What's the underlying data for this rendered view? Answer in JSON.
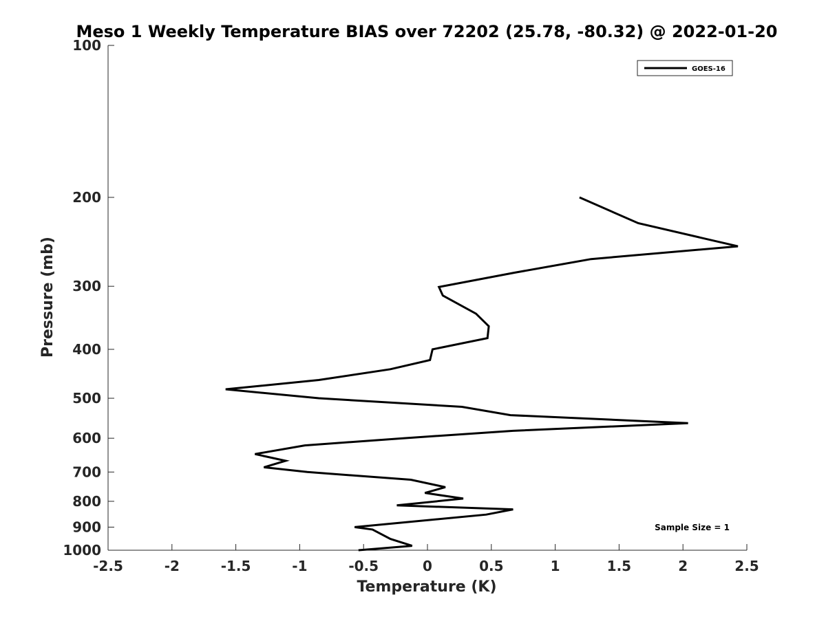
{
  "chart_data": {
    "type": "line",
    "title": "Meso 1 Weekly Temperature BIAS over 72202 (25.78, -80.32) @ 2022-01-20",
    "xlabel": "Temperature (K)",
    "ylabel": "Pressure (mb)",
    "xlim": [
      -2.5,
      2.5
    ],
    "ylim": [
      100,
      1000
    ],
    "y_scale": "log",
    "y_reversed": true,
    "grid": false,
    "legend_position": "top-right",
    "xticks": [
      -2.5,
      -2,
      -1.5,
      -1,
      -0.5,
      0,
      0.5,
      1,
      1.5,
      2,
      2.5
    ],
    "xtick_labels": [
      "-2.5",
      "-2",
      "-1.5",
      "-1",
      "-0.5",
      "0",
      "0.5",
      "1",
      "1.5",
      "2",
      "2.5"
    ],
    "yticks": [
      100,
      200,
      300,
      400,
      500,
      600,
      700,
      800,
      900,
      1000
    ],
    "ytick_labels": [
      "100",
      "200",
      "300",
      "400",
      "500",
      "600",
      "700",
      "800",
      "900",
      "1000"
    ],
    "series": [
      {
        "name": "GOES-16",
        "color": "#000000",
        "x": [
          1.19,
          1.65,
          2.43,
          1.28,
          0.68,
          0.09,
          0.12,
          0.38,
          0.48,
          0.47,
          0.04,
          0.02,
          -0.29,
          -0.85,
          -1.58,
          -0.85,
          0.27,
          0.65,
          2.04,
          0.67,
          -0.19,
          -0.96,
          -1.35,
          -1.11,
          -1.28,
          -0.94,
          -0.13,
          0.14,
          -0.02,
          0.28,
          -0.24,
          0.67,
          0.46,
          -0.57,
          -0.43,
          -0.29,
          -0.12,
          -0.54
        ],
        "y": [
          200,
          225,
          250,
          265,
          282,
          301,
          313,
          340,
          360,
          380,
          400,
          420,
          438,
          460,
          480,
          500,
          520,
          540,
          560,
          580,
          600,
          620,
          645,
          665,
          685,
          700,
          725,
          750,
          770,
          790,
          815,
          830,
          850,
          900,
          910,
          950,
          980,
          1000
        ]
      }
    ],
    "annotations": [
      "Sample Size = 1"
    ]
  }
}
